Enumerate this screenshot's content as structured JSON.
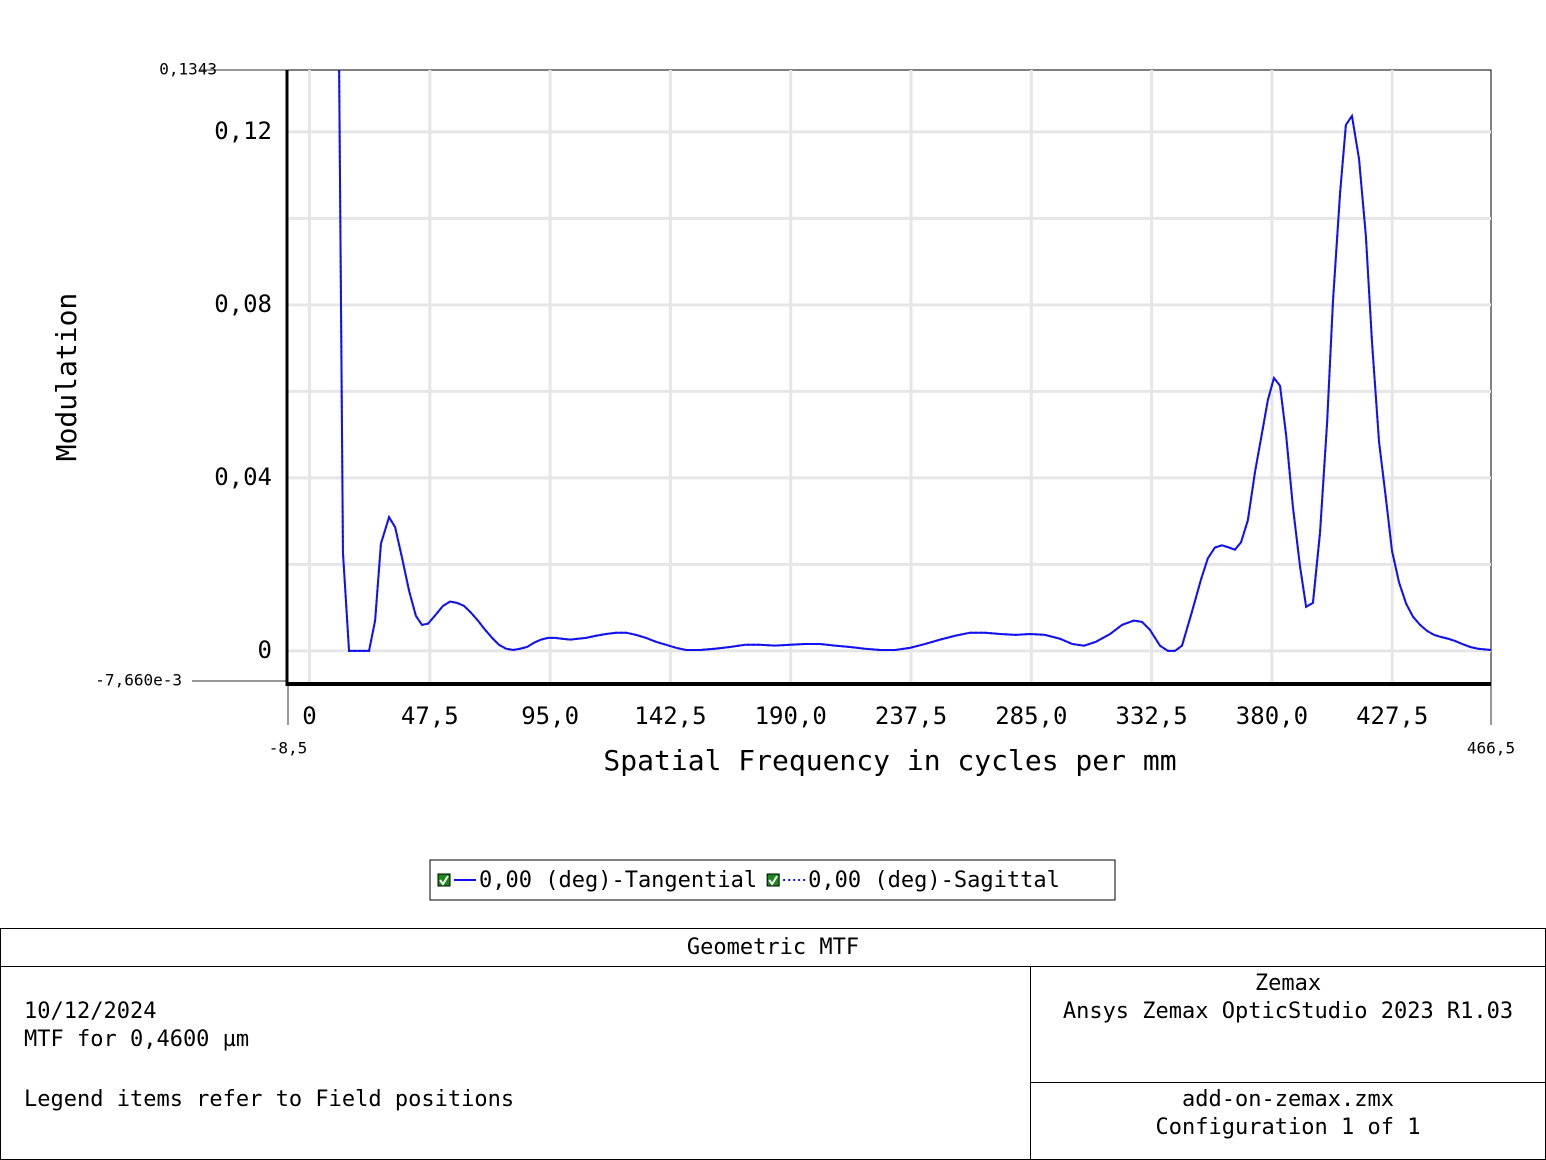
{
  "chart_data": {
    "type": "line",
    "ylabel": "Modulation",
    "xlabel": "Spatial Frequency in cycles per mm",
    "x": [
      0,
      13.2,
      15.6,
      23.5,
      25.9,
      28.2,
      31.4,
      33.8,
      36.5,
      39.3,
      42.0,
      44.4,
      46.8,
      49.9,
      52.7,
      55.5,
      58.2,
      61.0,
      63.8,
      66.5,
      69.3,
      72.1,
      74.8,
      77.6,
      80.4,
      83.1,
      85.9,
      88.7,
      91.4,
      94.2,
      97.0,
      99.7,
      102.9,
      106.0,
      109.2,
      113.1,
      117.1,
      121.0,
      125.0,
      128.9,
      132.9,
      136.8,
      140.8,
      144.7,
      148.7,
      154.2,
      160.1,
      166.0,
      172.0,
      177.9,
      183.8,
      189.7,
      195.7,
      201.6,
      207.5,
      213.4,
      219.4,
      225.3,
      231.2,
      237.1,
      243.1,
      249.0,
      254.9,
      260.8,
      266.8,
      272.7,
      278.6,
      284.5,
      290.4,
      296.3,
      301.1,
      305.8,
      310.5,
      316.1,
      320.8,
      325.5,
      328.7,
      331.8,
      335.8,
      338.9,
      341.7,
      344.5,
      348.4,
      352.0,
      354.7,
      357.5,
      360.3,
      363.0,
      365.4,
      367.8,
      370.5,
      373.3,
      376.0,
      378.4,
      380.8,
      383.2,
      385.6,
      388.3,
      391.1,
      393.5,
      396.2,
      399.0,
      401.8,
      404.1,
      406.9,
      409.2,
      411.6,
      414.4,
      417.1,
      419.5,
      422.3,
      425.1,
      427.4,
      430.2,
      433.0,
      435.7,
      438.5,
      441.3,
      444.0,
      446.8,
      449.6,
      452.3,
      455.1,
      458.3,
      461.4,
      466.5
    ],
    "series": [
      {
        "name": "0,00 (deg)-Tangential",
        "color": "#1010f0",
        "style": "solid",
        "values": [
          1.0,
          0.0227,
          0,
          0,
          0.007,
          0.0248,
          0.0309,
          0.0286,
          0.0216,
          0.0139,
          0.0081,
          0.006,
          0.0063,
          0.0084,
          0.0104,
          0.0114,
          0.0111,
          0.0104,
          0.0088,
          0.007,
          0.0049,
          0.003,
          0.0014,
          0.0005,
          0.0002,
          0.0005,
          0.0009,
          0.0019,
          0.0026,
          0.003,
          0.003,
          0.0028,
          0.0026,
          0.0028,
          0.003,
          0.0035,
          0.0039,
          0.0042,
          0.0042,
          0.0037,
          0.003,
          0.0021,
          0.0014,
          0.0007,
          0.0002,
          0.0002,
          0.0005,
          0.0009,
          0.0014,
          0.0014,
          0.0012,
          0.0014,
          0.0016,
          0.0016,
          0.0012,
          0.0009,
          0.0005,
          0.0002,
          0.0002,
          0.0007,
          0.0016,
          0.0026,
          0.0035,
          0.0042,
          0.0042,
          0.0039,
          0.0037,
          0.0039,
          0.0037,
          0.0028,
          0.0016,
          0.0012,
          0.0021,
          0.0039,
          0.006,
          0.007,
          0.0067,
          0.0049,
          0.0012,
          0,
          0,
          0.0012,
          0.009,
          0.0165,
          0.0214,
          0.0239,
          0.0244,
          0.0239,
          0.0234,
          0.0251,
          0.0302,
          0.0413,
          0.0501,
          0.058,
          0.0631,
          0.0613,
          0.0499,
          0.0332,
          0.0195,
          0.0102,
          0.0111,
          0.0274,
          0.0529,
          0.0808,
          0.1058,
          0.1216,
          0.1237,
          0.1137,
          0.0959,
          0.0715,
          0.0483,
          0.0348,
          0.0232,
          0.0158,
          0.0109,
          0.0079,
          0.006,
          0.0046,
          0.0037,
          0.0032,
          0.0028,
          0.0023,
          0.0016,
          0.0009,
          0.0005,
          0.0002
        ]
      },
      {
        "name": "0,00 (deg)-Sagittal",
        "color": "#1010f0",
        "style": "dotted",
        "values": [
          1.0,
          0.0227,
          0,
          0,
          0.007,
          0.0248,
          0.0309,
          0.0286,
          0.0216,
          0.0139,
          0.0081,
          0.006,
          0.0063,
          0.0084,
          0.0104,
          0.0114,
          0.0111,
          0.0104,
          0.0088,
          0.007,
          0.0049,
          0.003,
          0.0014,
          0.0005,
          0.0002,
          0.0005,
          0.0009,
          0.0019,
          0.0026,
          0.003,
          0.003,
          0.0028,
          0.0026,
          0.0028,
          0.003,
          0.0035,
          0.0039,
          0.0042,
          0.0042,
          0.0037,
          0.003,
          0.0021,
          0.0014,
          0.0007,
          0.0002,
          0.0002,
          0.0005,
          0.0009,
          0.0014,
          0.0014,
          0.0012,
          0.0014,
          0.0016,
          0.0016,
          0.0012,
          0.0009,
          0.0005,
          0.0002,
          0.0002,
          0.0007,
          0.0016,
          0.0026,
          0.0035,
          0.0042,
          0.0042,
          0.0039,
          0.0037,
          0.0039,
          0.0037,
          0.0028,
          0.0016,
          0.0012,
          0.0021,
          0.0039,
          0.006,
          0.007,
          0.0067,
          0.0049,
          0.0012,
          0,
          0,
          0.0012,
          0.009,
          0.0165,
          0.0214,
          0.0239,
          0.0244,
          0.0239,
          0.0234,
          0.0251,
          0.0302,
          0.0413,
          0.0501,
          0.058,
          0.0631,
          0.0613,
          0.0499,
          0.0332,
          0.0195,
          0.0102,
          0.0111,
          0.0274,
          0.0529,
          0.0808,
          0.1058,
          0.1216,
          0.1237,
          0.1137,
          0.0959,
          0.0715,
          0.0483,
          0.0348,
          0.0232,
          0.0158,
          0.0109,
          0.0079,
          0.006,
          0.0046,
          0.0037,
          0.0032,
          0.0028,
          0.0023,
          0.0016,
          0.0009,
          0.0005,
          0.0002
        ]
      }
    ],
    "xlim": [
      {
        "value": -8.5,
        "label": "-8,5"
      },
      {
        "value": 466.5,
        "label": "466,5"
      }
    ],
    "ylim": [
      {
        "value": -0.00766,
        "label": "-7,660e-3"
      },
      {
        "value": 0.1343,
        "label": "0,1343"
      }
    ],
    "xticks": [
      0,
      {
        "value": 47.5,
        "label": "47,5"
      },
      {
        "value": 95.0,
        "label": "95,0"
      },
      {
        "value": 142.5,
        "label": "142,5"
      },
      {
        "value": 190.0,
        "label": "190,0"
      },
      {
        "value": 237.5,
        "label": "237,5"
      },
      {
        "value": 285.0,
        "label": "285,0"
      },
      {
        "value": 332.5,
        "label": "332,5"
      },
      {
        "value": 380.0,
        "label": "380,0"
      },
      {
        "value": 427.5,
        "label": "427,5"
      }
    ],
    "yticks": [
      0,
      {
        "value": 0.04,
        "label": "0,04"
      },
      {
        "value": 0.08,
        "label": "0,08"
      },
      {
        "value": 0.12,
        "label": "0,12"
      }
    ],
    "y_minor_ticks": [
      0.02,
      0.06,
      0.1
    ],
    "grid": true
  },
  "footer": {
    "title": "Geometric MTF",
    "left_lines": [
      "10/12/2024",
      "MTF for 0,4600 µm",
      "Legend items refer to Field positions"
    ],
    "right_top": [
      "Zemax",
      "Ansys Zemax OpticStudio 2023 R1.03"
    ],
    "right_bottom": [
      "add-on-zemax.zmx",
      "Configuration 1 of 1"
    ]
  }
}
